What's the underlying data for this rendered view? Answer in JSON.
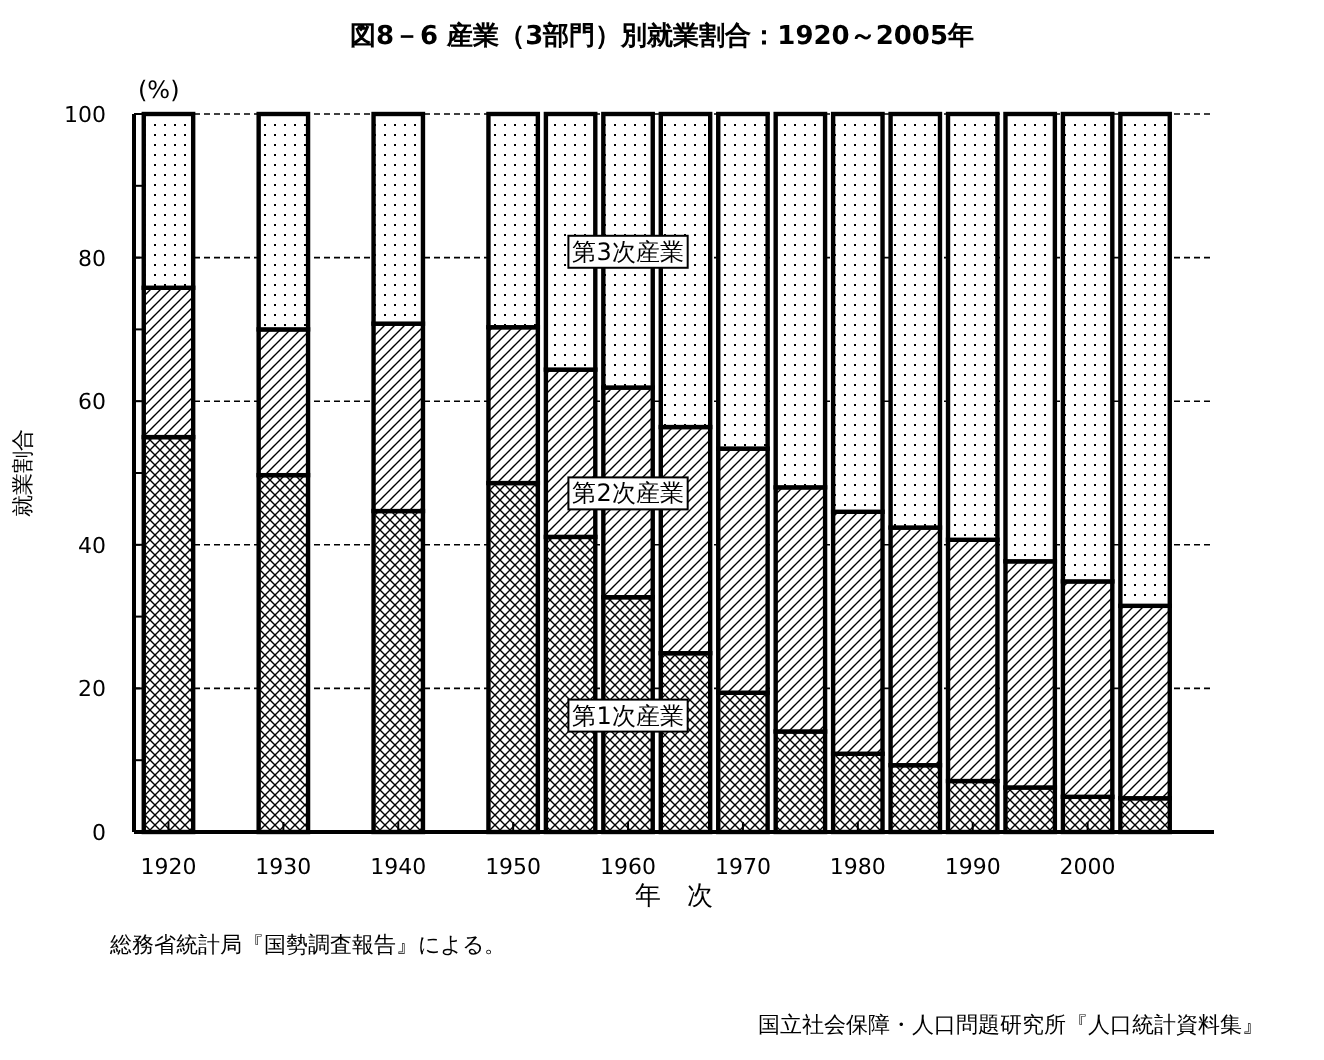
{
  "chart_data": {
    "type": "bar",
    "stacked": true,
    "title": "図8－6 産業（3部門）別就業割合：1920～2005年",
    "xlabel": "年　次",
    "ylabel": "就業割合",
    "annotations": [
      "(%)",
      "総務省統計局『国勢調査報告』による。",
      "国立社会保障・人口問題研究所『人口統計資料集』"
    ],
    "x": [
      1920,
      1930,
      1940,
      1950,
      1955,
      1960,
      1965,
      1970,
      1975,
      1980,
      1985,
      1990,
      1995,
      2000,
      2005
    ],
    "series": [
      {
        "name": "第1次産業",
        "color": "#000000",
        "values": [
          55.0,
          49.7,
          44.7,
          48.6,
          41.1,
          32.7,
          24.9,
          19.4,
          14.0,
          10.9,
          9.3,
          7.1,
          6.2,
          4.9,
          4.7
        ]
      },
      {
        "name": "第2次産業",
        "color": "#000000",
        "values": [
          20.8,
          20.3,
          26.1,
          21.7,
          23.3,
          29.2,
          31.5,
          34.0,
          34.0,
          33.7,
          33.1,
          33.6,
          31.5,
          30.0,
          26.8
        ]
      },
      {
        "name": "第3次産業",
        "color": "#000000",
        "values": [
          24.2,
          30.0,
          29.2,
          29.7,
          35.6,
          38.1,
          43.6,
          46.6,
          52.0,
          55.4,
          57.6,
          59.3,
          62.3,
          65.1,
          68.5
        ]
      }
    ],
    "xlim": [
      1917,
      2011
    ],
    "xticks": [
      1920,
      1930,
      1940,
      1950,
      1960,
      1970,
      1980,
      1990,
      2000
    ],
    "ylim": [
      0,
      100
    ],
    "yticks": [
      0,
      {
        "value": 10,
        "label": null
      },
      20,
      {
        "value": 30,
        "label": null
      },
      40,
      {
        "value": 50,
        "label": null
      },
      60,
      {
        "value": 70,
        "label": null
      },
      80,
      {
        "value": 90,
        "label": null
      },
      100
    ],
    "grid": "y"
  }
}
